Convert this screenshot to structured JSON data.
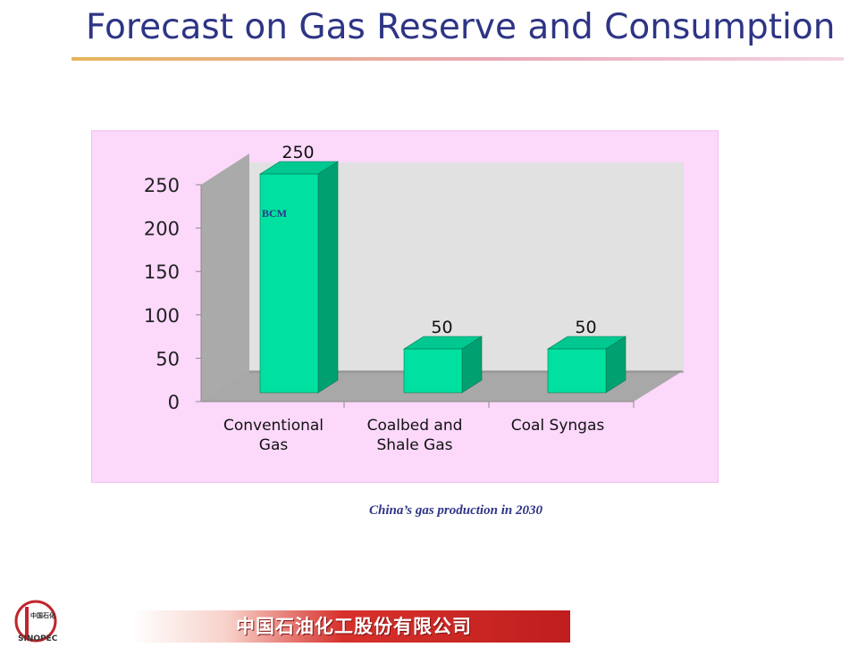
{
  "slide": {
    "title": "Forecast on Gas Reserve and Consumption",
    "caption": "China’s gas production in 2030",
    "footer_text": "中国石油化工股份有限公司",
    "logo_text": "SINOPEC",
    "logo_chinese": "中国石化"
  },
  "colors": {
    "title": "#2e3585",
    "bar_front": "#00e0a0",
    "bar_side": "#00a070",
    "bar_top": "#00c890",
    "plot_back": "#e1e1e1",
    "plot_floor": "#a8a8a8",
    "panel": "#fcd8fb",
    "footer_red": "#d7312c"
  },
  "chart_data": {
    "type": "bar",
    "categories": [
      [
        "Conventional",
        "Gas"
      ],
      [
        "Coalbed and",
        "Shale Gas"
      ],
      [
        "Coal Syngas"
      ]
    ],
    "values": [
      250,
      50,
      50
    ],
    "data_labels": [
      "250",
      "50",
      "50"
    ],
    "annotation": "BCM",
    "yticks": [
      "0",
      "50",
      "100",
      "150",
      "200",
      "250"
    ],
    "ylim": [
      0,
      250
    ],
    "grid": false,
    "legend": "none",
    "style": "3d"
  }
}
